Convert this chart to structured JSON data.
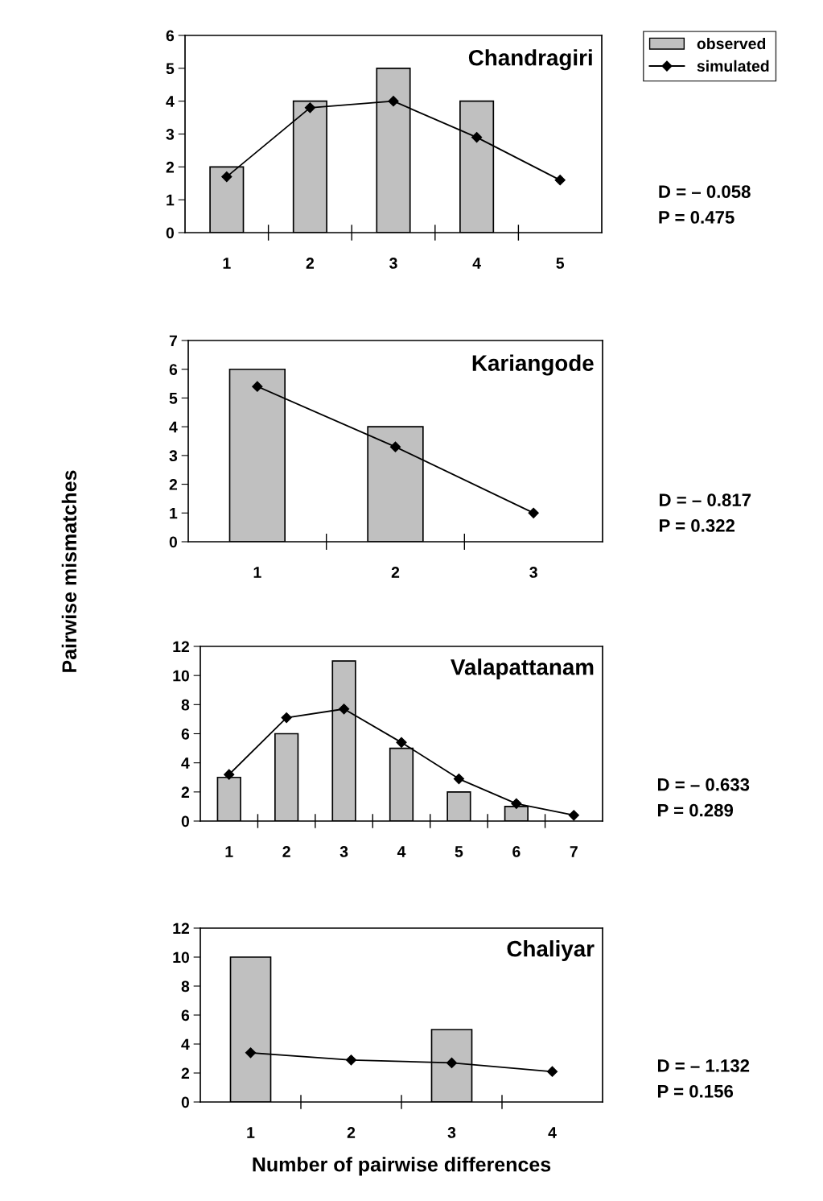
{
  "chart_data": [
    {
      "type": "bar",
      "title": "Chandragiri",
      "categories": [
        "1",
        "2",
        "3",
        "4",
        "5"
      ],
      "ylim": [
        0,
        6
      ],
      "yticks": [
        0,
        1,
        2,
        3,
        4,
        5,
        6
      ],
      "legend": "top right",
      "grid": false,
      "series": [
        {
          "name": "observed",
          "type": "bar",
          "color": "#c0c0c0",
          "values": [
            2,
            4,
            5,
            4,
            null
          ]
        },
        {
          "name": "simulated",
          "type": "line",
          "color": "#000000",
          "marker": "diamond",
          "values": [
            1.7,
            3.8,
            4.0,
            2.9,
            1.6
          ]
        }
      ],
      "annotations": [
        "D = – 0.058",
        "P = 0.475"
      ]
    },
    {
      "type": "bar",
      "title": "Kariangode",
      "ylabel": "Pairwise mismatches",
      "categories": [
        "1",
        "2",
        "3"
      ],
      "ylim": [
        0,
        7
      ],
      "yticks": [
        0,
        1,
        2,
        3,
        4,
        5,
        6,
        7
      ],
      "grid": false,
      "series": [
        {
          "type": "bar",
          "color": "#c0c0c0",
          "values": [
            6,
            4,
            null
          ]
        },
        {
          "type": "line",
          "color": "#000000",
          "marker": "diamond",
          "values": [
            5.4,
            3.3,
            1.0
          ]
        }
      ],
      "annotations": [
        "D = – 0.817",
        "P = 0.322"
      ]
    },
    {
      "type": "bar",
      "title": "Valapattanam",
      "categories": [
        "1",
        "2",
        "3",
        "4",
        "5",
        "6",
        "7"
      ],
      "ylim": [
        0,
        12
      ],
      "yticks": [
        0,
        2,
        4,
        6,
        8,
        10,
        12
      ],
      "grid": false,
      "series": [
        {
          "type": "bar",
          "color": "#c0c0c0",
          "values": [
            3,
            6,
            11,
            5,
            2,
            1,
            null
          ]
        },
        {
          "type": "line",
          "color": "#000000",
          "marker": "diamond",
          "values": [
            3.2,
            7.1,
            7.7,
            5.4,
            2.9,
            1.2,
            0.4
          ]
        }
      ],
      "annotations": [
        "D = – 0.633",
        "P = 0.289"
      ]
    },
    {
      "type": "bar",
      "title": "Chaliyar",
      "xlabel": "Number of pairwise differences",
      "categories": [
        "1",
        "2",
        "3",
        "4"
      ],
      "ylim": [
        0,
        12
      ],
      "yticks": [
        0,
        2,
        4,
        6,
        8,
        10,
        12
      ],
      "grid": false,
      "series": [
        {
          "type": "bar",
          "color": "#c0c0c0",
          "values": [
            10,
            null,
            5,
            null
          ]
        },
        {
          "type": "line",
          "color": "#000000",
          "marker": "diamond",
          "values": [
            3.4,
            2.9,
            2.7,
            2.1
          ]
        }
      ],
      "annotations": [
        "D = – 1.132",
        "P = 0.156"
      ]
    }
  ]
}
